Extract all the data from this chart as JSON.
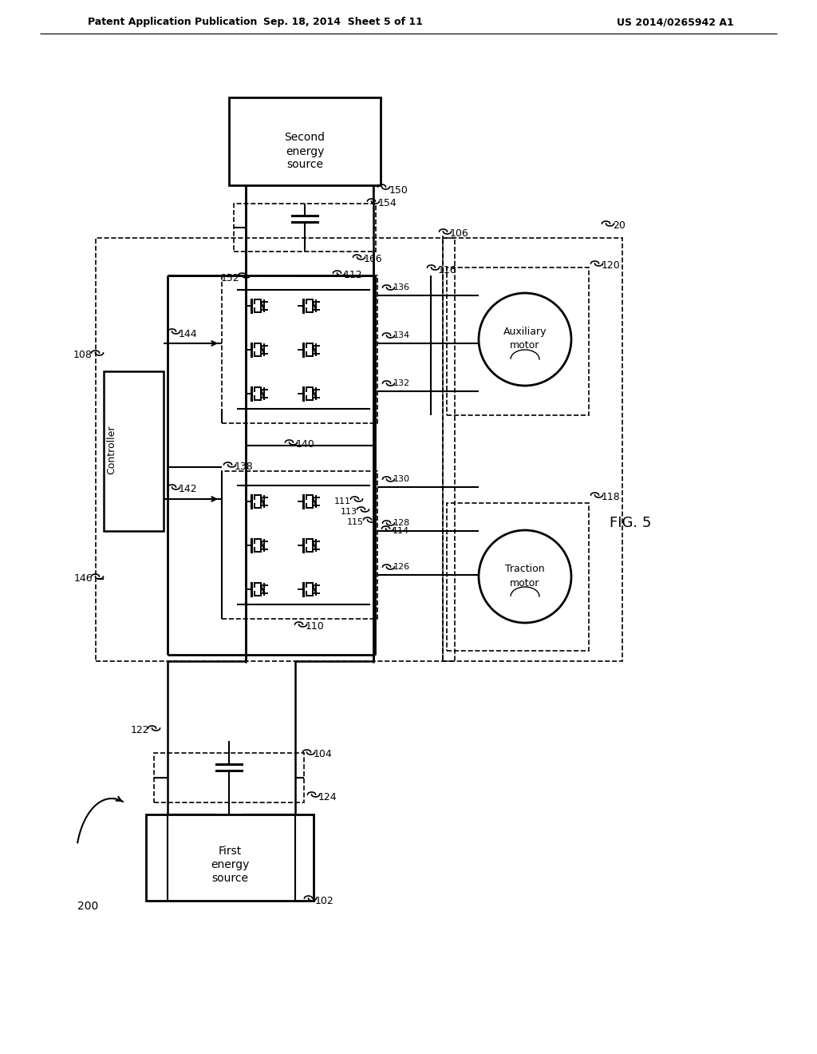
{
  "bg_color": "#ffffff",
  "header_left": "Patent Application Publication",
  "header_mid": "Sep. 18, 2014  Sheet 5 of 11",
  "header_right": "US 2014/0265942 A1",
  "fig_label": "FIG. 5"
}
